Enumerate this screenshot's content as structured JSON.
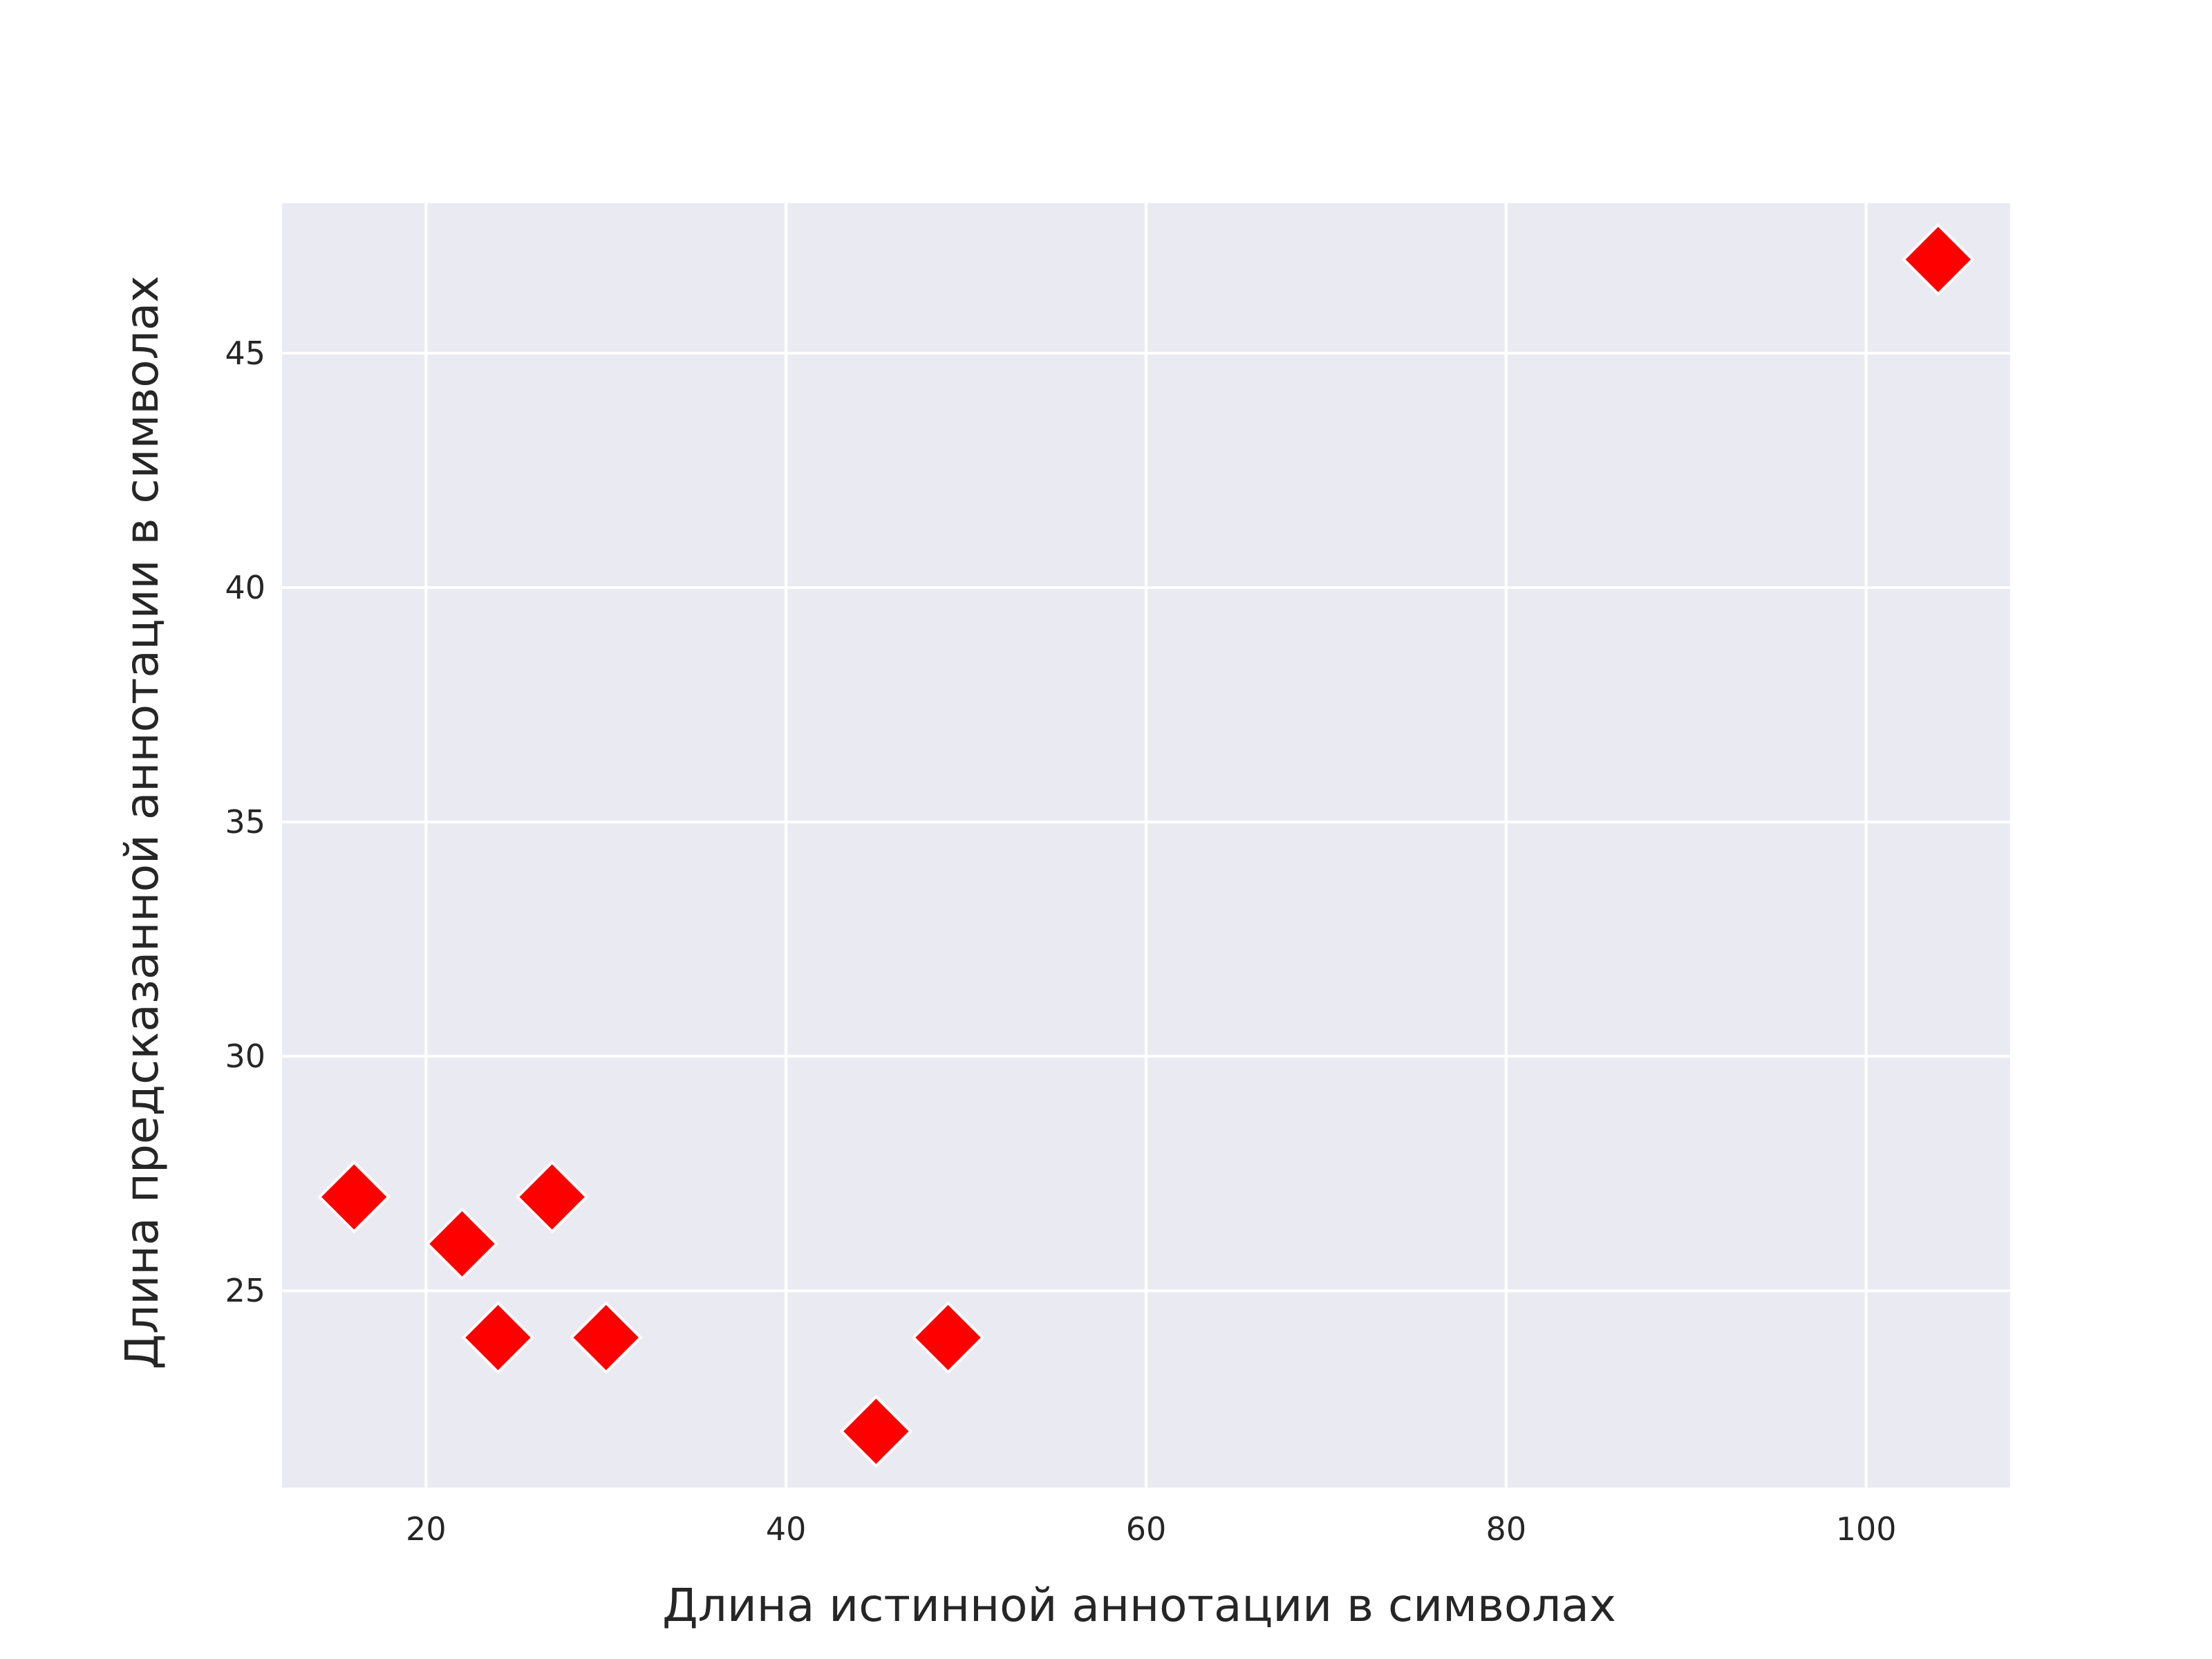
{
  "chart_data": {
    "type": "scatter",
    "title": "",
    "xlabel": "Длина истинной аннотации в символах",
    "ylabel": "Длина предсказанной аннотации в символах",
    "xlim": [
      12,
      108
    ],
    "ylim": [
      20.8,
      48.2
    ],
    "xticks": [
      20,
      40,
      60,
      80,
      100
    ],
    "yticks": [
      25,
      30,
      35,
      40,
      45
    ],
    "grid": true,
    "marker": "diamond",
    "colors": {
      "marker": "#ff0000",
      "marker_edge": "#ffffff",
      "plot_bg": "#eaeaf2",
      "grid": "#ffffff",
      "text": "#262626"
    },
    "points": [
      {
        "x": 16,
        "y": 27
      },
      {
        "x": 22,
        "y": 26
      },
      {
        "x": 24,
        "y": 24
      },
      {
        "x": 27,
        "y": 27
      },
      {
        "x": 30,
        "y": 24
      },
      {
        "x": 45,
        "y": 22
      },
      {
        "x": 49,
        "y": 24
      },
      {
        "x": 104,
        "y": 47
      }
    ]
  }
}
